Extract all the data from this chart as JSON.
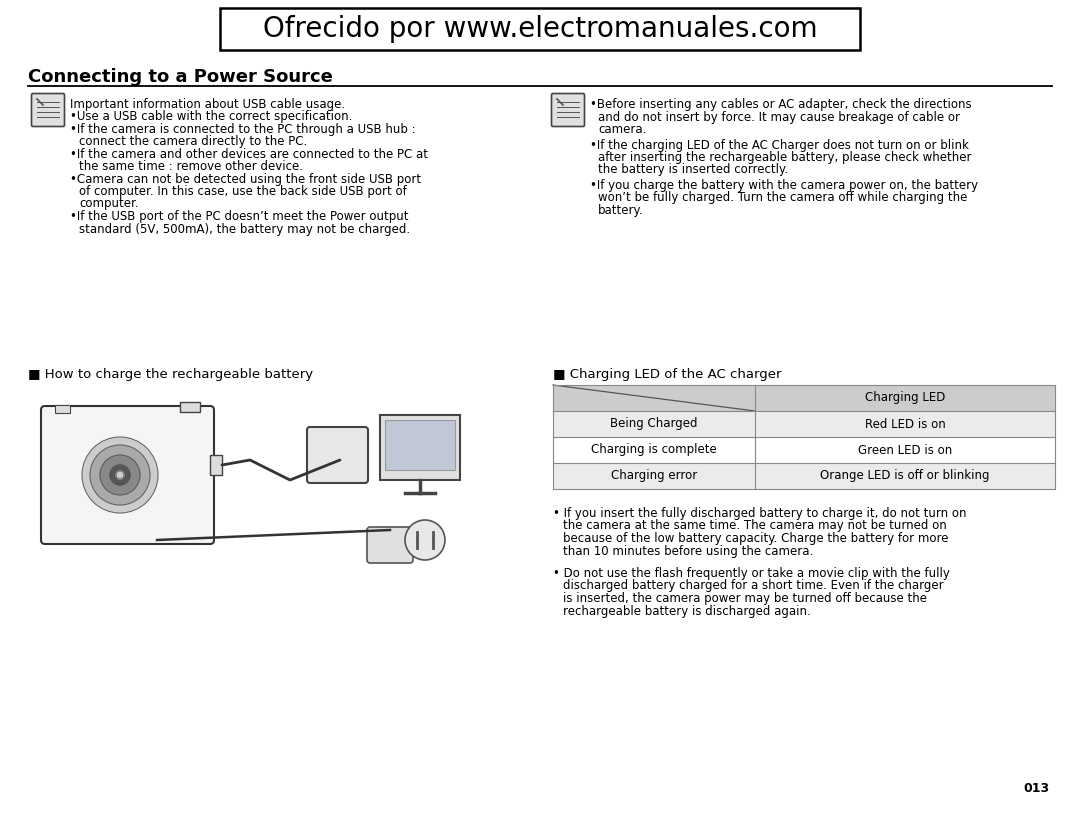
{
  "title": "Ofrecido por www.electromanuales.com",
  "section_title": "Connecting to a Power Source",
  "bg_color": "#ffffff",
  "left_col_icon_note": "Important information about USB cable usage.",
  "left_col_bullets": [
    "•Use a USB cable with the correct specification.",
    "•If the camera is connected to the PC through a USB hub :\n   connect the camera directly to the PC.",
    "•If the camera and other devices are connected to the PC at\n   the same time : remove other device.",
    "•Camera can not be detected using the front side USB port\n   of computer. In this case, use the back side USB port of\n   computer.",
    "•If the USB port of the PC doesn’t meet the Power output\n   standard (5V, 500mA), the battery may not be charged."
  ],
  "right_col_bullets": [
    "•Before inserting any cables or AC adapter, check the directions\n   and do not insert by force. It may cause breakage of cable or\n   camera.",
    "•If the charging LED of the AC Charger does not turn on or blink\n   after inserting the rechargeable battery, please check whether\n   the battery is inserted correctly.",
    "•If you charge the battery with the camera power on, the battery\n   won’t be fully charged. Turn the camera off while charging the\n   battery."
  ],
  "left_section2": "■ How to charge the rechargeable battery",
  "right_section2": "■ Charging LED of the AC charger",
  "table_header_bg": "#cccccc",
  "table_row_bg": "#ebebeb",
  "table_header_col2": "Charging LED",
  "table_rows": [
    [
      "Being Charged",
      "Red LED is on"
    ],
    [
      "Charging is complete",
      "Green LED is on"
    ],
    [
      "Charging error",
      "Orange LED is off or blinking"
    ]
  ],
  "bullet_points_bottom_right": [
    "• If you insert the fully discharged battery to charge it, do not turn on\n   the camera at the same time. The camera may not be turned on\n   because of the low battery capacity. Charge the battery for more\n   than 10 minutes before using the camera.",
    "• Do not use the flash frequently or take a movie clip with the fully\n   discharged battery charged for a short time. Even if the charger\n   is inserted, the camera power may be turned off because the\n   rechargeable battery is discharged again."
  ],
  "page_number": "013",
  "font_size_title": 20,
  "font_size_section_title": 13,
  "font_size_body": 8.5,
  "font_size_table": 8.5,
  "font_size_page": 9,
  "font_size_section2": 8.5
}
